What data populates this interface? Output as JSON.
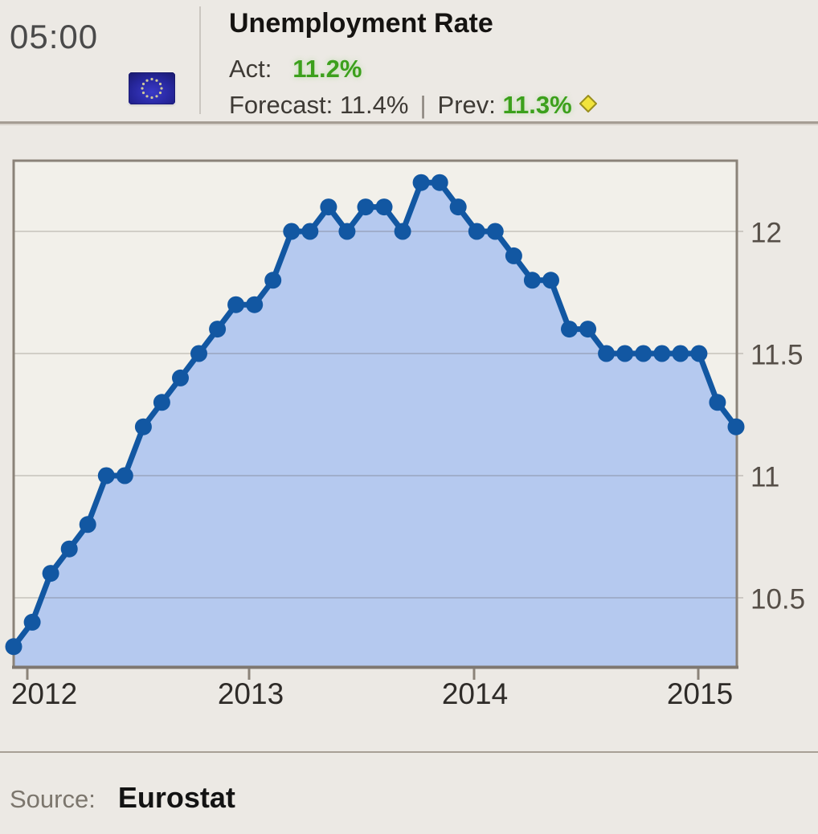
{
  "header": {
    "time": "05:00",
    "title": "Unemployment Rate",
    "flag": "european-union-flag",
    "actual_label": "Act:",
    "actual_value": "11.2%",
    "forecast_label": "Forecast:",
    "forecast_value": "11.4%",
    "separator": "|",
    "previous_label": "Prev:",
    "previous_value": "11.3%",
    "actual_color": "#3CA01C",
    "previous_color": "#3CA01C",
    "revised_marker": "yellow-diamond"
  },
  "chart_data": {
    "type": "line",
    "title": "Unemployment Rate",
    "series": [
      {
        "name": "Unemployment Rate (%)",
        "values": [
          10.3,
          10.4,
          10.6,
          10.7,
          10.8,
          11.0,
          11.0,
          11.2,
          11.3,
          11.4,
          11.5,
          11.6,
          11.7,
          11.7,
          11.8,
          12.0,
          12.0,
          12.1,
          12.0,
          12.1,
          12.1,
          12.0,
          12.2,
          12.2,
          12.1,
          12.0,
          12.0,
          11.9,
          11.8,
          11.8,
          11.6,
          11.6,
          11.5,
          11.5,
          11.5,
          11.5,
          11.5,
          11.5,
          11.3,
          11.2
        ]
      }
    ],
    "x_interval": "monthly",
    "x_tick_labels": [
      "2012",
      "2013",
      "2014",
      "2015"
    ],
    "y_tick_labels": [
      "12",
      "11.5",
      "11",
      "10.5"
    ],
    "y_ticks": [
      12,
      11.5,
      11,
      10.5
    ],
    "ylim": [
      10.2,
      12.3
    ],
    "grid": true,
    "legend": "none",
    "line_color": "#1257A2",
    "fill_color": "#B5C9EF",
    "plot_bg": "#F2F0EA",
    "border_color": "#8B8379"
  },
  "footer": {
    "source_label": "Source:",
    "source_value": "Eurostat"
  }
}
